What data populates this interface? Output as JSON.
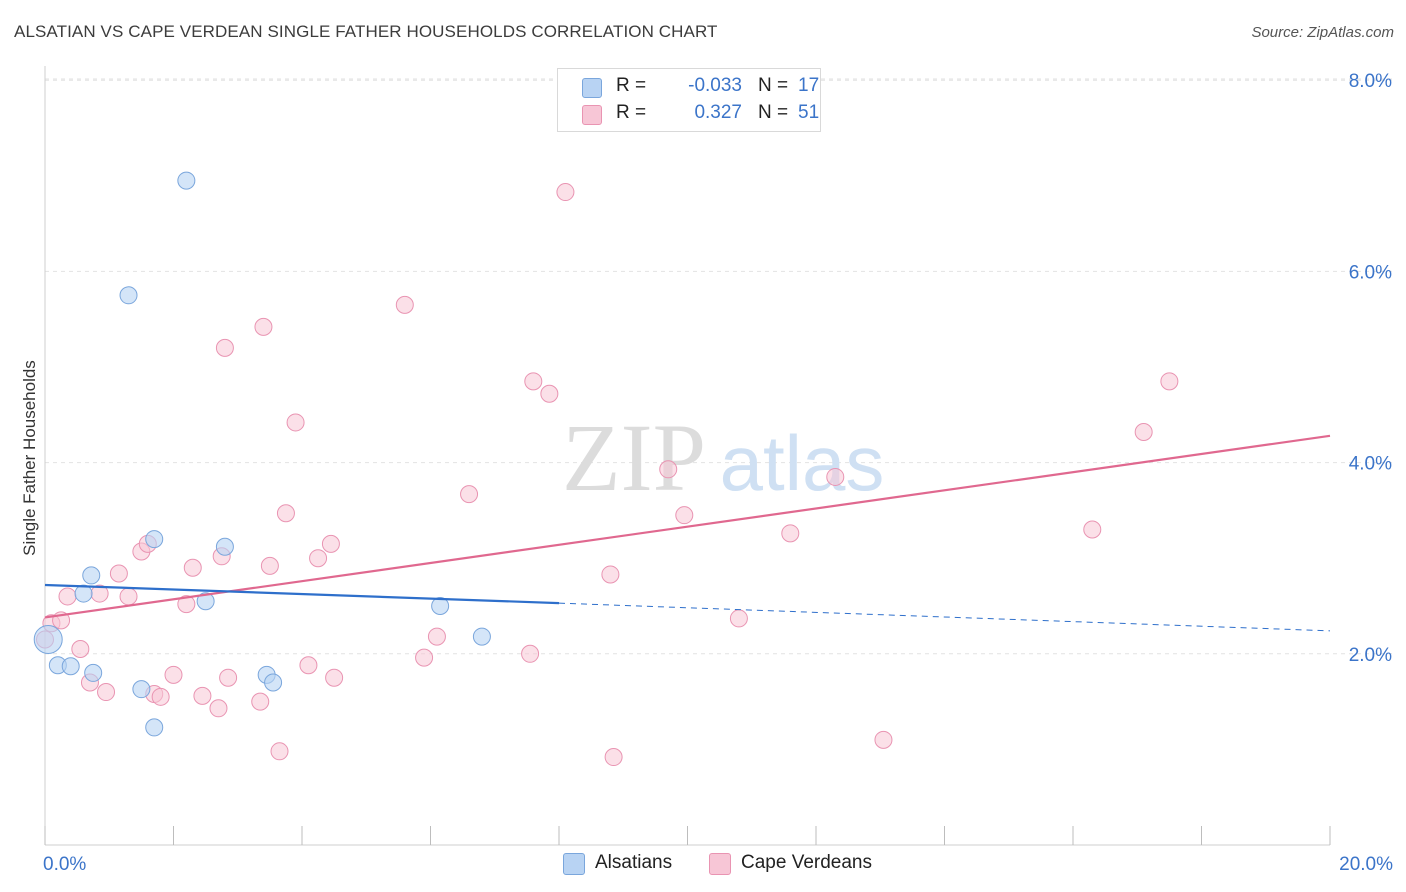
{
  "header": {
    "title": "ALSATIAN VS CAPE VERDEAN SINGLE FATHER HOUSEHOLDS CORRELATION CHART",
    "source": "Source: ZipAtlas.com"
  },
  "legend": {
    "rows": [
      {
        "r_label": "R =",
        "r_value": "-0.033",
        "n_label": "N =",
        "n_value": "17"
      },
      {
        "r_label": "R =",
        "r_value": "0.327",
        "n_label": "N =",
        "n_value": "51"
      }
    ]
  },
  "watermark": {
    "zip": "ZIP",
    "atlas": "atlas"
  },
  "colors": {
    "alsatian_fill": "#b8d3f3",
    "alsatian_stroke": "#7aa6dc",
    "alsatian_line": "#2e6fcb",
    "cape_fill": "#f7c6d6",
    "cape_stroke": "#e994b2",
    "cape_line": "#e0688f",
    "axis_text": "#3b74c9",
    "grid": "#e2e2e2"
  },
  "chart_data": {
    "type": "scatter",
    "title": "ALSATIAN VS CAPE VERDEAN SINGLE FATHER HOUSEHOLDS CORRELATION CHART",
    "xlabel": "",
    "ylabel": "Single Father Households",
    "xlim": [
      0,
      20
    ],
    "ylim": [
      0,
      8
    ],
    "x_tick_labels": [
      "0.0%",
      "20.0%"
    ],
    "y_ticks": [
      2,
      4,
      6,
      8
    ],
    "y_tick_labels": [
      "2.0%",
      "4.0%",
      "6.0%",
      "8.0%"
    ],
    "grid": true,
    "series": [
      {
        "name": "Alsatians",
        "r": -0.033,
        "n": 17,
        "points": [
          [
            0.05,
            2.15
          ],
          [
            0.2,
            1.88
          ],
          [
            0.4,
            1.87
          ],
          [
            0.6,
            2.63
          ],
          [
            0.72,
            2.82
          ],
          [
            0.75,
            1.8
          ],
          [
            1.3,
            5.75
          ],
          [
            1.5,
            1.63
          ],
          [
            1.7,
            1.23
          ],
          [
            1.7,
            3.2
          ],
          [
            2.2,
            6.95
          ],
          [
            2.5,
            2.55
          ],
          [
            2.8,
            3.12
          ],
          [
            3.45,
            1.78
          ],
          [
            3.55,
            1.7
          ],
          [
            6.15,
            2.5
          ],
          [
            6.8,
            2.18
          ]
        ],
        "trend": {
          "x_solid": [
            0,
            8
          ],
          "y_solid": [
            2.72,
            2.53
          ],
          "x_dashed": [
            8,
            20
          ],
          "y_dashed": [
            2.53,
            2.24
          ]
        }
      },
      {
        "name": "Cape Verdeans",
        "r": 0.327,
        "n": 51,
        "points": [
          [
            0.1,
            2.32
          ],
          [
            0.25,
            2.35
          ],
          [
            0.35,
            2.6
          ],
          [
            0.55,
            2.05
          ],
          [
            0.7,
            1.7
          ],
          [
            0.85,
            2.63
          ],
          [
            0.95,
            1.6
          ],
          [
            1.15,
            2.84
          ],
          [
            1.3,
            2.6
          ],
          [
            1.5,
            3.07
          ],
          [
            1.6,
            3.15
          ],
          [
            1.7,
            1.58
          ],
          [
            1.8,
            1.55
          ],
          [
            2.0,
            1.78
          ],
          [
            2.2,
            2.52
          ],
          [
            2.3,
            2.9
          ],
          [
            2.45,
            1.56
          ],
          [
            2.7,
            1.43
          ],
          [
            2.75,
            3.02
          ],
          [
            2.8,
            5.2
          ],
          [
            2.85,
            1.75
          ],
          [
            3.35,
            1.5
          ],
          [
            3.4,
            5.42
          ],
          [
            3.5,
            2.92
          ],
          [
            3.65,
            0.98
          ],
          [
            3.75,
            3.47
          ],
          [
            3.9,
            4.42
          ],
          [
            4.1,
            1.88
          ],
          [
            4.25,
            3.0
          ],
          [
            4.45,
            3.15
          ],
          [
            4.5,
            1.75
          ],
          [
            5.6,
            5.65
          ],
          [
            5.9,
            1.96
          ],
          [
            6.1,
            2.18
          ],
          [
            6.6,
            3.67
          ],
          [
            7.55,
            2.0
          ],
          [
            7.6,
            4.85
          ],
          [
            7.85,
            4.72
          ],
          [
            8.1,
            6.83
          ],
          [
            8.8,
            2.83
          ],
          [
            8.85,
            0.92
          ],
          [
            9.7,
            3.93
          ],
          [
            9.95,
            3.45
          ],
          [
            10.8,
            2.37
          ],
          [
            11.6,
            3.26
          ],
          [
            12.3,
            3.85
          ],
          [
            13.05,
            1.1
          ],
          [
            16.3,
            3.3
          ],
          [
            17.1,
            4.32
          ],
          [
            17.5,
            4.85
          ],
          [
            0.0,
            2.15
          ]
        ],
        "trend": {
          "x_solid": [
            0,
            20
          ],
          "y_solid": [
            2.38,
            4.28
          ]
        }
      }
    ]
  },
  "bottom_legend": [
    {
      "label": "Alsatians"
    },
    {
      "label": "Cape Verdeans"
    }
  ]
}
